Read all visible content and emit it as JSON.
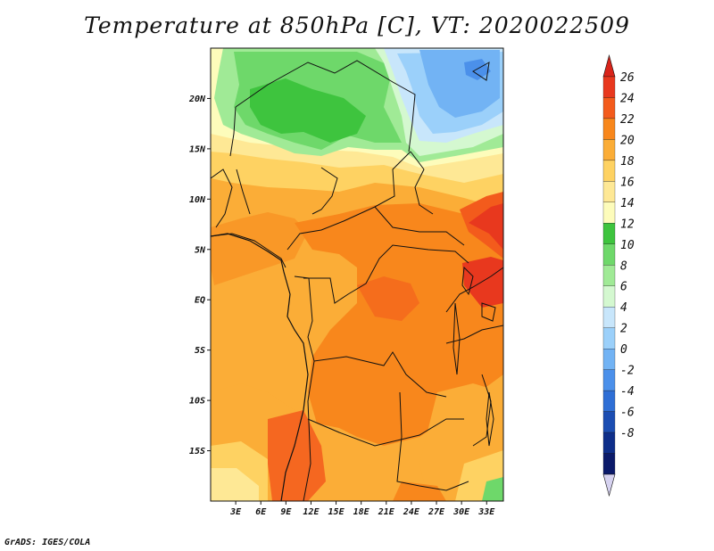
{
  "title": "Temperature at 850hPa [C], VT: 2020022509",
  "credit": "GrADS: IGES/COLA",
  "map": {
    "lat_labels": [
      "20N",
      "15N",
      "10N",
      "5N",
      "EQ",
      "5S",
      "10S",
      "15S"
    ],
    "lon_labels": [
      "3E",
      "6E",
      "9E",
      "12E",
      "15E",
      "18E",
      "21E",
      "24E",
      "27E",
      "30E",
      "33E"
    ],
    "lat_range": [
      -20,
      25
    ],
    "lon_range": [
      0,
      35
    ]
  },
  "colorbar": {
    "labels": [
      "26",
      "24",
      "22",
      "20",
      "18",
      "16",
      "14",
      "12",
      "10",
      "8",
      "6",
      "4",
      "2",
      "0",
      "-2",
      "-4",
      "-6",
      "-8"
    ],
    "colors": [
      "#e8381e",
      "#f35b1c",
      "#f8871c",
      "#fbad37",
      "#fed262",
      "#fee895",
      "#fdfcbb",
      "#3ec43e",
      "#6ed86a",
      "#a0ea96",
      "#d4f8d0",
      "#c8e6fb",
      "#9bd0fa",
      "#72b3f4",
      "#4b90ea",
      "#2e6ed5",
      "#1b4db2",
      "#0e2e8a",
      "#0b1a6a"
    ],
    "top_color": "#d9241a",
    "bottom_color": "#d6d2f0"
  },
  "chart_data": {
    "type": "heatmap",
    "title": "Temperature at 850hPa [C], VT: 2020022509",
    "variable": "Temperature at 850hPa",
    "units": "C",
    "valid_time": "2020022509",
    "lon_ticks": [
      "3E",
      "6E",
      "9E",
      "12E",
      "15E",
      "18E",
      "21E",
      "24E",
      "27E",
      "30E",
      "33E"
    ],
    "lat_ticks": [
      "20N",
      "15N",
      "10N",
      "5N",
      "EQ",
      "5S",
      "10S",
      "15S"
    ],
    "levels": [
      -8,
      -6,
      -4,
      -2,
      0,
      2,
      4,
      6,
      8,
      10,
      12,
      14,
      16,
      18,
      20,
      22,
      24,
      26
    ]
  }
}
